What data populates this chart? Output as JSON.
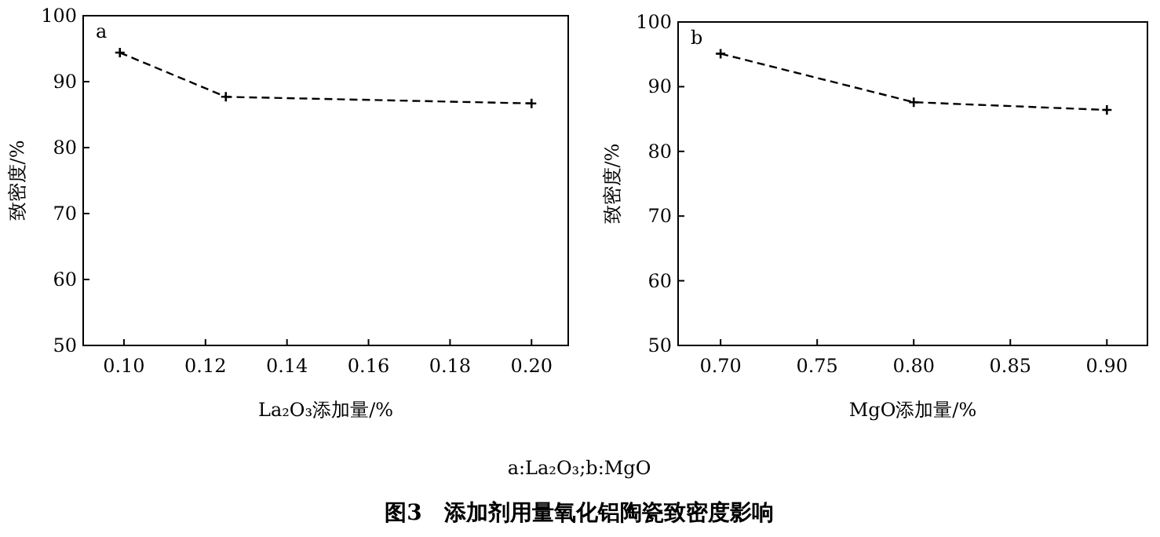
{
  "chart_data": [
    {
      "type": "line",
      "xlabel": "La₂O₃添加量/%",
      "ylabel": "致密度/%",
      "annotations": [
        "a"
      ],
      "x": [
        0.099,
        0.125,
        0.2
      ],
      "values": [
        94.4,
        87.7,
        86.7
      ],
      "color": "#000000",
      "marker": "cross",
      "line_style": "dashed",
      "xlim": [
        0.09,
        0.209
      ],
      "xticks": [
        {
          "value": 0.1,
          "label": "0.10"
        },
        0.12,
        0.14,
        0.16,
        0.18,
        {
          "value": 0.2,
          "label": "0.20"
        }
      ],
      "ylim": [
        50,
        100
      ],
      "yticks": [
        50,
        60,
        70,
        80,
        90,
        100
      ]
    },
    {
      "type": "line",
      "xlabel": "MgO添加量/%",
      "ylabel": "致密度/%",
      "annotations": [
        "b"
      ],
      "x": [
        0.7,
        0.8,
        0.9
      ],
      "values": [
        95.1,
        87.6,
        86.4
      ],
      "color": "#000000",
      "marker": "cross",
      "line_style": "dashed",
      "xlim": [
        0.678,
        0.921
      ],
      "xticks": [
        {
          "value": 0.7,
          "label": "0.70"
        },
        0.75,
        {
          "value": 0.8,
          "label": "0.80"
        },
        0.85,
        {
          "value": 0.9,
          "label": "0.90"
        }
      ],
      "ylim": [
        50,
        100
      ],
      "yticks": [
        50,
        60,
        70,
        80,
        90,
        100
      ]
    },
    {
      "type": "other",
      "annotations": [
        "a:La₂O₃;b:MgO"
      ],
      "title": "图3　添加剂用量氧化铝陶瓷致密度影响"
    }
  ]
}
